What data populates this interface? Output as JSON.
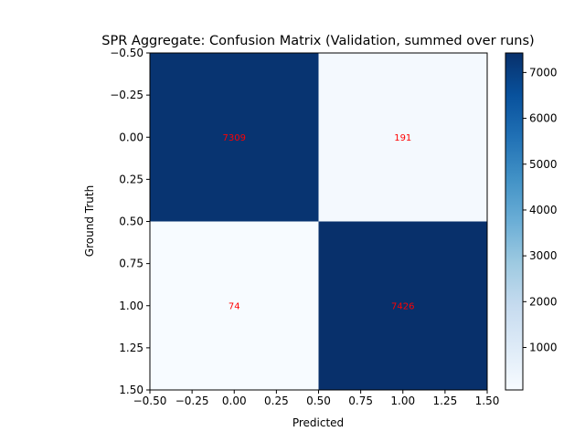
{
  "chart_data": {
    "type": "heatmap",
    "title": "SPR Aggregate: Confusion Matrix (Validation, summed over runs)",
    "xlabel": "Predicted",
    "ylabel": "Ground Truth",
    "matrix": [
      [
        7309,
        191
      ],
      [
        74,
        7426
      ]
    ],
    "annotation_color": "#ff0000",
    "colormap": "Blues",
    "color_range": [
      74,
      7426
    ],
    "xlim": [
      -0.5,
      1.5
    ],
    "ylim": [
      1.5,
      -0.5
    ],
    "y_inverted": true,
    "x_ticks": [
      "−0.50",
      "−0.25",
      "0.00",
      "0.25",
      "0.50",
      "0.75",
      "1.00",
      "1.25",
      "1.50"
    ],
    "y_ticks": [
      "−0.50",
      "−0.25",
      "0.00",
      "0.25",
      "0.50",
      "0.75",
      "1.00",
      "1.25",
      "1.50"
    ],
    "colorbar_ticks": [
      "1000",
      "2000",
      "3000",
      "4000",
      "5000",
      "6000",
      "7000"
    ],
    "grid": false
  }
}
